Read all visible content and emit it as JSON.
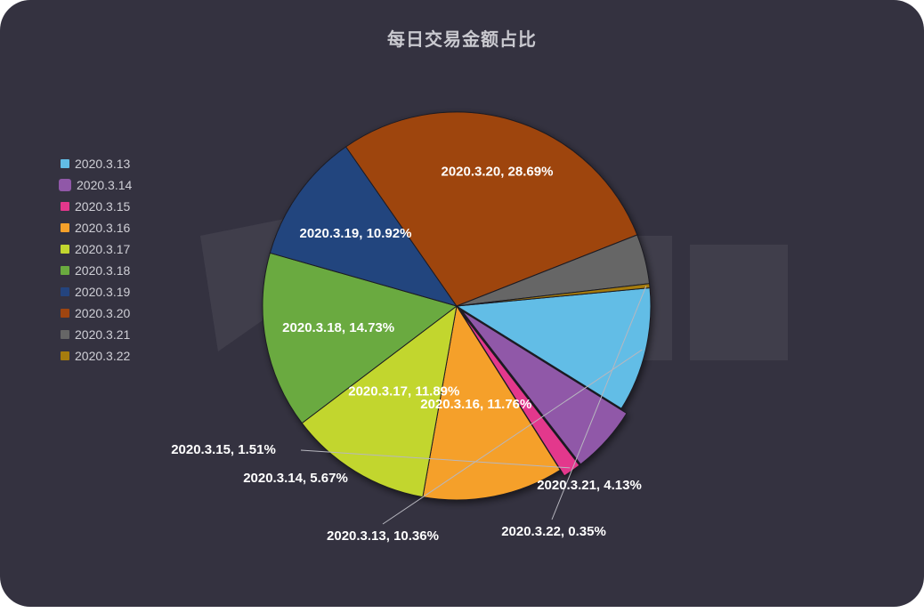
{
  "chart_data": {
    "type": "pie",
    "title": "每日交易金额占比",
    "categories": [
      "2020.3.13",
      "2020.3.14",
      "2020.3.15",
      "2020.3.16",
      "2020.3.17",
      "2020.3.18",
      "2020.3.19",
      "2020.3.20",
      "2020.3.21",
      "2020.3.22"
    ],
    "values": [
      10.36,
      5.67,
      1.51,
      11.76,
      11.89,
      14.73,
      10.92,
      28.69,
      4.13,
      0.35
    ],
    "labels": [
      "2020.3.13, 10.36%",
      "2020.3.14, 5.67%",
      "2020.3.15, 1.51%",
      "2020.3.16, 11.76%",
      "2020.3.17, 11.89%",
      "2020.3.18, 14.73%",
      "2020.3.19, 10.92%",
      "2020.3.20, 28.69%",
      "2020.3.21, 4.13%",
      "2020.3.22, 0.35%"
    ],
    "colors": [
      "#62bde6",
      "#9058a8",
      "#e3378c",
      "#f5a02a",
      "#c2d62f",
      "#6aaa3f",
      "#24447e",
      "#9e4510",
      "#666666",
      "#a67c0e"
    ],
    "legend_position": "left"
  }
}
